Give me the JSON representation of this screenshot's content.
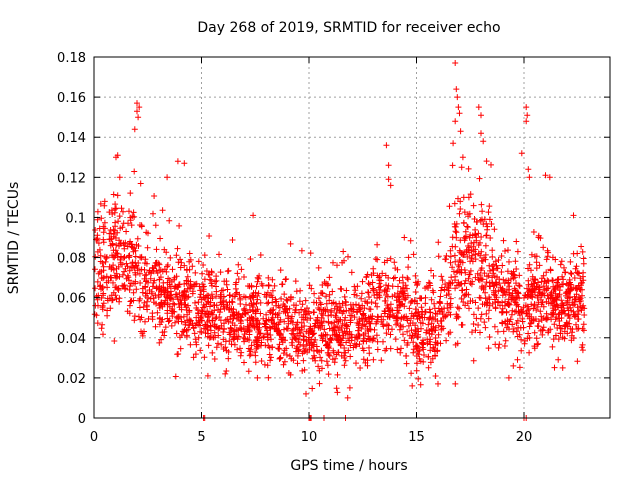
{
  "chart_data": {
    "type": "scatter",
    "title": "Day 268 of 2019, SRMTID for receiver echo",
    "xlabel": "GPS time / hours",
    "ylabel": "SRMTID / TECUs",
    "xlim": [
      0,
      24
    ],
    "ylim": [
      0,
      0.18
    ],
    "xticks": [
      0,
      5,
      10,
      15,
      20
    ],
    "xtick_labels": [
      "0",
      "5",
      "10",
      "15",
      "20"
    ],
    "yticks": [
      0,
      0.02,
      0.04,
      0.06,
      0.08,
      0.1,
      0.12,
      0.14,
      0.16,
      0.18
    ],
    "ytick_labels": [
      "0",
      "0.02",
      "0.04",
      "0.06",
      "0.08",
      "0.1",
      "0.12",
      "0.14",
      "0.16",
      "0.18"
    ],
    "grid": true,
    "marker": "+",
    "series": [
      {
        "name": "SRMTID",
        "color": "#ff0000",
        "time_range": [
          0.0,
          22.8
        ],
        "approx_count": 2600,
        "outliers": [
          {
            "x": 0.5,
            "y": 0.108
          },
          {
            "x": 1.1,
            "y": 0.131
          },
          {
            "x": 1.2,
            "y": 0.12
          },
          {
            "x": 1.9,
            "y": 0.144
          },
          {
            "x": 2.0,
            "y": 0.153
          },
          {
            "x": 2.0,
            "y": 0.157
          },
          {
            "x": 2.1,
            "y": 0.155
          },
          {
            "x": 2.05,
            "y": 0.15
          },
          {
            "x": 3.4,
            "y": 0.12
          },
          {
            "x": 3.9,
            "y": 0.128
          },
          {
            "x": 4.2,
            "y": 0.127
          },
          {
            "x": 7.4,
            "y": 0.101
          },
          {
            "x": 13.6,
            "y": 0.136
          },
          {
            "x": 13.7,
            "y": 0.126
          },
          {
            "x": 13.7,
            "y": 0.119
          },
          {
            "x": 13.8,
            "y": 0.116
          },
          {
            "x": 16.8,
            "y": 0.177
          },
          {
            "x": 16.85,
            "y": 0.164
          },
          {
            "x": 16.9,
            "y": 0.16
          },
          {
            "x": 16.95,
            "y": 0.155
          },
          {
            "x": 16.8,
            "y": 0.148
          },
          {
            "x": 17.0,
            "y": 0.152
          },
          {
            "x": 17.05,
            "y": 0.143
          },
          {
            "x": 16.7,
            "y": 0.137
          },
          {
            "x": 17.1,
            "y": 0.125
          },
          {
            "x": 17.2,
            "y": 0.11
          },
          {
            "x": 17.9,
            "y": 0.155
          },
          {
            "x": 18.0,
            "y": 0.151
          },
          {
            "x": 18.0,
            "y": 0.142
          },
          {
            "x": 18.1,
            "y": 0.138
          },
          {
            "x": 19.9,
            "y": 0.132
          },
          {
            "x": 20.1,
            "y": 0.155
          },
          {
            "x": 20.15,
            "y": 0.151
          },
          {
            "x": 20.1,
            "y": 0.148
          },
          {
            "x": 20.2,
            "y": 0.124
          },
          {
            "x": 20.25,
            "y": 0.12
          },
          {
            "x": 21.0,
            "y": 0.121
          },
          {
            "x": 21.2,
            "y": 0.12
          },
          {
            "x": 22.3,
            "y": 0.101
          },
          {
            "x": 5.3,
            "y": 0.021
          },
          {
            "x": 6.1,
            "y": 0.022
          },
          {
            "x": 7.6,
            "y": 0.02
          },
          {
            "x": 11.8,
            "y": 0.01
          },
          {
            "x": 11.9,
            "y": 0.015
          },
          {
            "x": 14.8,
            "y": 0.016
          },
          {
            "x": 16.0,
            "y": 0.017
          },
          {
            "x": 19.3,
            "y": 0.02
          },
          {
            "x": 19.5,
            "y": 0.026
          },
          {
            "x": 21.8,
            "y": 0.025
          }
        ],
        "zero_points": [
          5.1,
          5.15,
          10.0,
          10.05,
          10.1,
          10.7,
          11.7,
          20.0,
          20.1
        ]
      }
    ]
  }
}
